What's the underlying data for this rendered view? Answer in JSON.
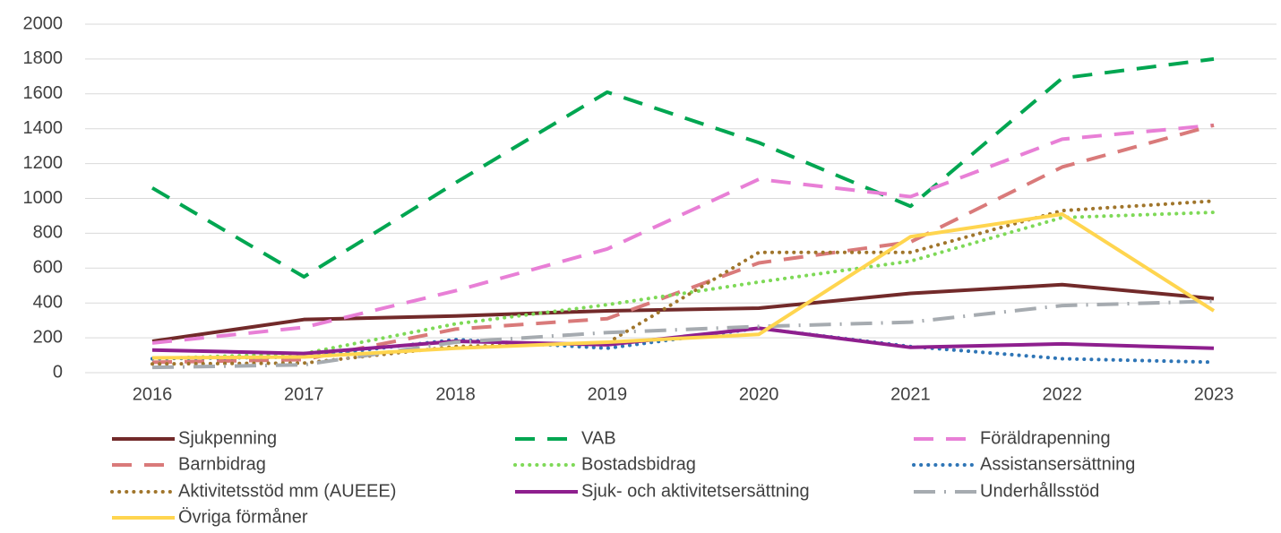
{
  "chart_data": {
    "type": "line",
    "categories": [
      "2016",
      "2017",
      "2018",
      "2019",
      "2020",
      "2021",
      "2022",
      "2023"
    ],
    "ylim": [
      0,
      2000
    ],
    "yticks": [
      0,
      200,
      400,
      600,
      800,
      1000,
      1200,
      1400,
      1600,
      1800,
      2000
    ],
    "grid": true,
    "legend": "bottom",
    "series": [
      {
        "name": "Sjukpenning",
        "color": "#722a2a",
        "style": "solid",
        "values": [
          180,
          305,
          325,
          355,
          370,
          455,
          505,
          425
        ]
      },
      {
        "name": "VAB",
        "color": "#00a651",
        "style": "dashed",
        "values": [
          1060,
          550,
          1090,
          1610,
          1320,
          955,
          1690,
          1800
        ]
      },
      {
        "name": "Föräldrapenning",
        "color": "#e87fd6",
        "style": "dashed",
        "values": [
          170,
          260,
          470,
          710,
          1110,
          1010,
          1340,
          1420
        ]
      },
      {
        "name": "Barnbidrag",
        "color": "#d97a7a",
        "style": "dashed",
        "values": [
          60,
          75,
          250,
          310,
          630,
          750,
          1180,
          1420
        ]
      },
      {
        "name": "Bostadsbidrag",
        "color": "#7ed957",
        "style": "dotted",
        "values": [
          80,
          110,
          280,
          390,
          520,
          640,
          890,
          920
        ]
      },
      {
        "name": "Assistansersättning",
        "color": "#2e75b6",
        "style": "dotted",
        "values": [
          80,
          90,
          190,
          140,
          255,
          150,
          80,
          60
        ]
      },
      {
        "name": "Aktivitetsstöd mm (AUEEE)",
        "color": "#a0752b",
        "style": "dotted",
        "values": [
          50,
          55,
          150,
          170,
          690,
          690,
          930,
          985
        ]
      },
      {
        "name": "Sjuk- och aktivitetsersättning",
        "color": "#8e1f8e",
        "style": "solid",
        "values": [
          130,
          110,
          180,
          160,
          255,
          145,
          165,
          140
        ]
      },
      {
        "name": "Underhållsstöd",
        "color": "#a6abb0",
        "style": "dashdot",
        "values": [
          30,
          45,
          175,
          230,
          265,
          290,
          385,
          410
        ]
      },
      {
        "name": "Övriga förmåner",
        "color": "#ffd54f",
        "style": "solid",
        "values": [
          85,
          90,
          140,
          175,
          220,
          780,
          910,
          355
        ]
      }
    ]
  }
}
